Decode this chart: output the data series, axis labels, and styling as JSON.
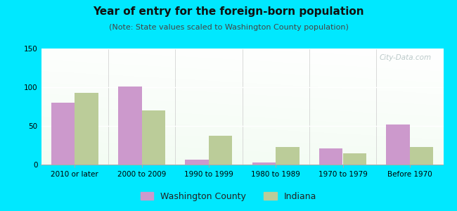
{
  "title": "Year of entry for the foreign-born population",
  "subtitle": "(Note: State values scaled to Washington County population)",
  "categories": [
    "2010 or later",
    "2000 to 2009",
    "1990 to 1999",
    "1980 to 1989",
    "1970 to 1979",
    "Before 1970"
  ],
  "washington_values": [
    80,
    101,
    6,
    3,
    21,
    52
  ],
  "indiana_values": [
    93,
    70,
    37,
    23,
    15,
    23
  ],
  "washington_color": "#cc99cc",
  "indiana_color": "#bbcc99",
  "background_color": "#00e8ff",
  "ylim": [
    0,
    150
  ],
  "yticks": [
    0,
    50,
    100,
    150
  ],
  "bar_width": 0.35,
  "title_fontsize": 11,
  "subtitle_fontsize": 8,
  "tick_fontsize": 7.5,
  "legend_fontsize": 9,
  "watermark": "City-Data.com"
}
